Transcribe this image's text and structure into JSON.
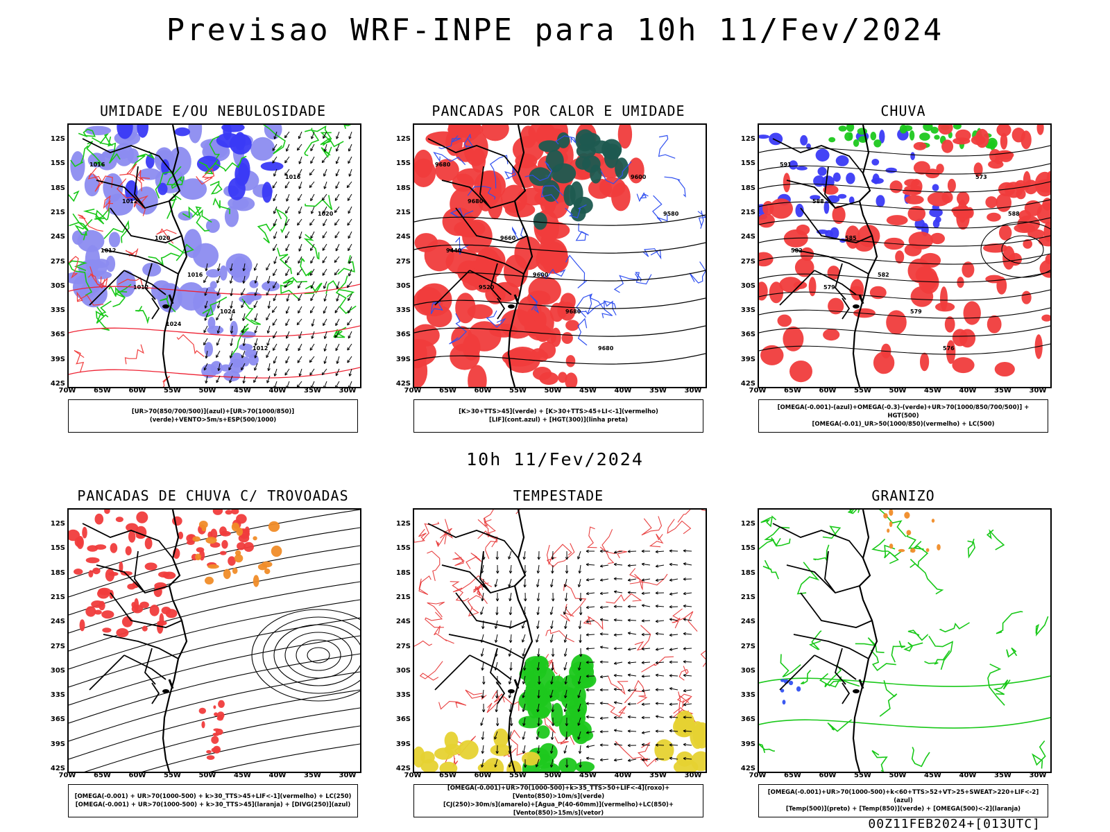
{
  "header": {
    "title": "Previsao WRF-INPE  para 10h 11/Fev/2024"
  },
  "middle": {
    "title": "10h 11/Fev/2024"
  },
  "footer": {
    "text": "00Z11FEB2024+[013UTC]"
  },
  "axes": {
    "lat_labels": [
      "12S",
      "15S",
      "18S",
      "21S",
      "24S",
      "27S",
      "30S",
      "33S",
      "36S",
      "39S",
      "42S"
    ],
    "lon_labels": [
      "70W",
      "65W",
      "60W",
      "55W",
      "50W",
      "45W",
      "40W",
      "35W",
      "30W"
    ]
  },
  "colors": {
    "blue_humidity": "#8c8cf0",
    "blue_dark": "#3a3af5",
    "green_contour": "#18c818",
    "red_fill": "#f03c3c",
    "dark_teal": "#1e5a50",
    "orange": "#f08c28",
    "yellow": "#e6d232",
    "green_fill": "#1ec81e"
  },
  "panels": [
    {
      "title": "UMIDADE E/OU NEBULOSIDADE",
      "legend": [
        "[UR>70(850/700/500)](azul)+[UR>70(1000/850)](verde)+VENTO>5m/s+ESP(500/1000)"
      ],
      "contour_labels": [
        "1016",
        "1012",
        "1020",
        "1016",
        "1024",
        "1012",
        "1016",
        "1020",
        "1012",
        "1012",
        "1024"
      ]
    },
    {
      "title": "PANCADAS POR CALOR E UMIDADE",
      "legend": [
        "[K>30+TTS>45](verde) + [K>30+TTS>45+LI<-1](vermelho)",
        "[LIF](cont.azul) + [HGT(300)](linha preta)"
      ],
      "contour_labels": [
        "9680",
        "9680",
        "9660",
        "9600",
        "9680",
        "9680",
        "9600",
        "9580",
        "9440",
        "9520"
      ]
    },
    {
      "title": "CHUVA",
      "legend": [
        "[OMEGA(-0.001)-(azul)+OMEGA(-0.3)-(verde)+UR>70(1000/850/700/500)] + HGT(500)",
        "[OMEGA(-0.01)_UR>50(1000/850)(vermelho) + LC(500)"
      ],
      "contour_labels": [
        "591",
        "588",
        "585",
        "582",
        "579",
        "576",
        "573",
        "588",
        "582",
        "579"
      ]
    },
    {
      "title": "PANCADAS DE CHUVA C/ TROVOADAS",
      "legend": [
        "[OMEGA(-0.001) + UR>70(1000-500) + k>30_TTS>45+LIF<-1](vermelho) + LC(250)",
        "[OMEGA(-0.001) + UR>70(1000-500) + k>30_TTS>45](laranja) + [DIVG(250)](azul)"
      ],
      "contour_labels": []
    },
    {
      "title": "TEMPESTADE",
      "legend": [
        "[OMEGA(-0.001)+UR>70(1000-500)+k>35_TTS>50+LIF<-4](roxo)+[Vento(850)>10m/s](verde)",
        "[CJ(250)>30m/s](amarelo)+[Agua_P(40-60mm)](vermelho)+LC(850)+[Vento(850)>15m/s](vetor)"
      ],
      "contour_labels": []
    },
    {
      "title": "GRANIZO",
      "legend": [
        "[OMEGA(-0.001)+UR>70(1000-500)+k<60+TTS>52+VT>25+SWEAT>220+LIF<-2](azul)",
        "[Temp(500)](preto) + [Temp(850)](verde) + [OMEGA(500)<-2](laranja)"
      ],
      "contour_labels": []
    }
  ]
}
